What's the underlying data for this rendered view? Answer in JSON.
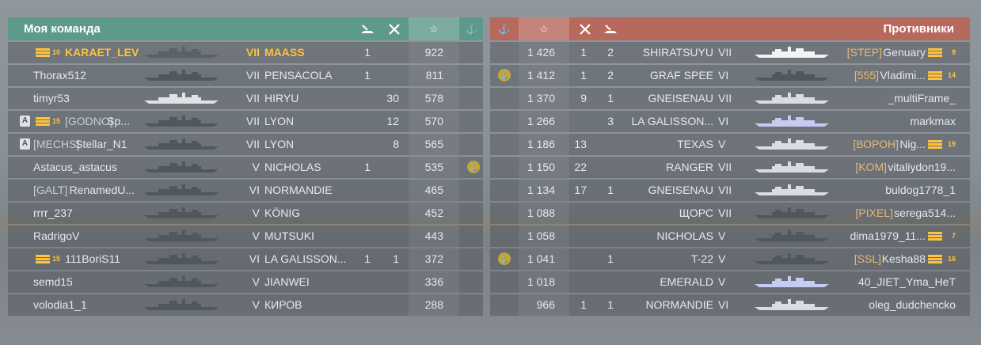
{
  "left": {
    "title": "Моя команда",
    "rows": [
      {
        "level": "10",
        "name": "KARAET_LEV",
        "clan": "",
        "tier": "VII",
        "ship": "MAASS",
        "kills": "1",
        "planes": "",
        "xp": "922",
        "emblem": false,
        "badge": false,
        "highlight": true,
        "ship_color": "#5a6168"
      },
      {
        "level": "",
        "name": "Thorax512",
        "clan": "",
        "tier": "VII",
        "ship": "PENSACOLA",
        "kills": "1",
        "planes": "",
        "xp": "811",
        "emblem": false,
        "badge": false,
        "highlight": false,
        "ship_color": "#50575e"
      },
      {
        "level": "",
        "name": "timyr53",
        "clan": "",
        "tier": "VII",
        "ship": "HIRYU",
        "kills": "",
        "planes": "30",
        "xp": "578",
        "emblem": false,
        "badge": false,
        "highlight": false,
        "ship_color": "#dfe3e6"
      },
      {
        "level": "15",
        "name": "Sp...",
        "clan": "[GODNO]",
        "tier": "VII",
        "ship": "LYON",
        "kills": "",
        "planes": "12",
        "xp": "570",
        "emblem": false,
        "badge": true,
        "highlight": false,
        "ship_color": "#50575e"
      },
      {
        "level": "",
        "name": "Stellar_N1",
        "clan": "[MECHS]",
        "tier": "VII",
        "ship": "LYON",
        "kills": "",
        "planes": "8",
        "xp": "565",
        "emblem": false,
        "badge": true,
        "highlight": false,
        "ship_color": "#50575e"
      },
      {
        "level": "",
        "name": "Astacus_astacus",
        "clan": "",
        "tier": "V",
        "ship": "NICHOLAS",
        "kills": "1",
        "planes": "",
        "xp": "535",
        "emblem": true,
        "badge": false,
        "highlight": false,
        "ship_color": "#50575e"
      },
      {
        "level": "",
        "name": "RenamedU...",
        "clan": "[GALT]",
        "tier": "VI",
        "ship": "NORMANDIE",
        "kills": "",
        "planes": "",
        "xp": "465",
        "emblem": false,
        "badge": false,
        "highlight": false,
        "ship_color": "#50575e"
      },
      {
        "level": "",
        "name": "rrrr_237",
        "clan": "",
        "tier": "V",
        "ship": "KÖNIG",
        "kills": "",
        "planes": "",
        "xp": "452",
        "emblem": false,
        "badge": false,
        "highlight": false,
        "ship_color": "#50575e"
      },
      {
        "level": "",
        "name": "RadrigoV",
        "clan": "",
        "tier": "V",
        "ship": "MUTSUKI",
        "kills": "",
        "planes": "",
        "xp": "443",
        "emblem": false,
        "badge": false,
        "highlight": false,
        "ship_color": "#50575e"
      },
      {
        "level": "15",
        "name": "111BoriS11",
        "clan": "",
        "tier": "VI",
        "ship": "LA GALISSON...",
        "kills": "1",
        "planes": "1",
        "xp": "372",
        "emblem": false,
        "badge": false,
        "highlight": false,
        "ship_color": "#50575e"
      },
      {
        "level": "",
        "name": "semd15",
        "clan": "",
        "tier": "V",
        "ship": "JIANWEI",
        "kills": "",
        "planes": "",
        "xp": "336",
        "emblem": false,
        "badge": false,
        "highlight": false,
        "ship_color": "#50575e"
      },
      {
        "level": "",
        "name": "volodia1_1",
        "clan": "",
        "tier": "V",
        "ship": "КИРОВ",
        "kills": "",
        "planes": "",
        "xp": "288",
        "emblem": false,
        "badge": false,
        "highlight": false,
        "ship_color": "#50575e"
      }
    ]
  },
  "right": {
    "title": "Противники",
    "rows": [
      {
        "xp": "1 426",
        "planes": "1",
        "kills": "2",
        "ship": "SHIRATSUYU",
        "tier": "VII",
        "clan": "[STEP]",
        "name": "Genuary",
        "level": "9",
        "emblem": false,
        "ship_color": "#f1f3f5"
      },
      {
        "xp": "1 412",
        "planes": "1",
        "kills": "2",
        "ship": "GRAF SPEE",
        "tier": "VI",
        "clan": "[555]",
        "name": "Vladimi...",
        "level": "14",
        "emblem": true,
        "ship_color": "#50575e"
      },
      {
        "xp": "1 370",
        "planes": "9",
        "kills": "1",
        "ship": "GNEISENAU",
        "tier": "VII",
        "clan": "",
        "name": "_multiFrame_",
        "level": "",
        "emblem": false,
        "ship_color": "#d9dde1"
      },
      {
        "xp": "1 266",
        "planes": "",
        "kills": "3",
        "ship": "LA GALISSON...",
        "tier": "VI",
        "clan": "",
        "name": "markmax",
        "level": "",
        "emblem": false,
        "ship_color": "#c5cbf2"
      },
      {
        "xp": "1 186",
        "planes": "13",
        "kills": "",
        "ship": "TEXAS",
        "tier": "V",
        "clan": "[ВОРОН]",
        "name": "Nig...",
        "level": "19",
        "emblem": false,
        "ship_color": "#d9dde1"
      },
      {
        "xp": "1 150",
        "planes": "22",
        "kills": "",
        "ship": "RANGER",
        "tier": "VII",
        "clan": "[KOM]",
        "name": "vitaliydon19...",
        "level": "",
        "emblem": false,
        "ship_color": "#d9dde1"
      },
      {
        "xp": "1 134",
        "planes": "17",
        "kills": "1",
        "ship": "GNEISENAU",
        "tier": "VII",
        "clan": "",
        "name": "buldog1778_1",
        "level": "",
        "emblem": false,
        "ship_color": "#d9dde1"
      },
      {
        "xp": "1 088",
        "planes": "",
        "kills": "",
        "ship": "ЩОРС",
        "tier": "VII",
        "clan": "[PIXEL]",
        "name": "serega514...",
        "level": "",
        "emblem": false,
        "ship_color": "#50575e"
      },
      {
        "xp": "1 058",
        "planes": "",
        "kills": "",
        "ship": "NICHOLAS",
        "tier": "V",
        "clan": "",
        "name": "dima1979_11...",
        "level": "7",
        "emblem": false,
        "ship_color": "#50575e"
      },
      {
        "xp": "1 041",
        "planes": "",
        "kills": "1",
        "ship": "T-22",
        "tier": "V",
        "clan": "[SSL]",
        "name": "Kesha88",
        "level": "16",
        "emblem": true,
        "ship_color": "#50575e"
      },
      {
        "xp": "1 018",
        "planes": "",
        "kills": "",
        "ship": "EMERALD",
        "tier": "V",
        "clan": "",
        "name": "40_JIET_Yma_HeT",
        "level": "",
        "emblem": false,
        "ship_color": "#c5cbf2"
      },
      {
        "xp": "966",
        "planes": "1",
        "kills": "1",
        "ship": "NORMANDIE",
        "tier": "VI",
        "clan": "",
        "name": "oleg_dudchencko",
        "level": "",
        "emblem": false,
        "ship_color": "#d9dde1"
      }
    ]
  },
  "icons": {
    "kills": "ship-kill-icon",
    "planes": "plane-kill-icon",
    "xp": "star-icon",
    "emblem": "anchor-emblem-icon",
    "level": "service-level-icon",
    "badge": "rank-badge-icon"
  },
  "colors": {
    "ally_header": "#5e9a8a",
    "enemy_header": "#b8695e",
    "highlight": "#ffc23a"
  }
}
